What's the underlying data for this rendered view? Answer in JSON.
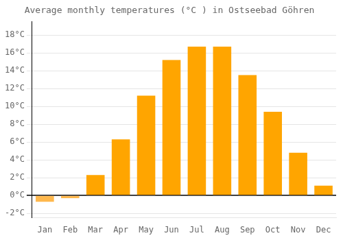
{
  "chart_data": {
    "type": "bar",
    "title": "Average monthly temperatures (°C ) in Ostseebad Göhren",
    "categories": [
      "Jan",
      "Feb",
      "Mar",
      "Apr",
      "May",
      "Jun",
      "Jul",
      "Aug",
      "Sep",
      "Oct",
      "Nov",
      "Dec"
    ],
    "values": [
      -0.7,
      -0.3,
      2.3,
      6.3,
      11.2,
      15.2,
      16.7,
      16.7,
      13.5,
      9.4,
      4.8,
      1.1
    ],
    "colors": [
      "#FFB84D",
      "#FFB84D",
      "#FFA500",
      "#FFA500",
      "#FFA500",
      "#FFA500",
      "#FFA500",
      "#FFA500",
      "#FFA500",
      "#FFA500",
      "#FFA500",
      "#FFA500"
    ],
    "ylim": [
      -2.5,
      19.5
    ],
    "yticks": [
      {
        "value": -2,
        "label": "-2°C"
      },
      {
        "value": 0,
        "label": "0°C"
      },
      {
        "value": 2,
        "label": "2°C"
      },
      {
        "value": 4,
        "label": "4°C"
      },
      {
        "value": 6,
        "label": "6°C"
      },
      {
        "value": 8,
        "label": "8°C"
      },
      {
        "value": 10,
        "label": "10°C"
      },
      {
        "value": 12,
        "label": "12°C"
      },
      {
        "value": 14,
        "label": "14°C"
      },
      {
        "value": 16,
        "label": "16°C"
      },
      {
        "value": 18,
        "label": "18°C"
      }
    ],
    "grid": true
  }
}
